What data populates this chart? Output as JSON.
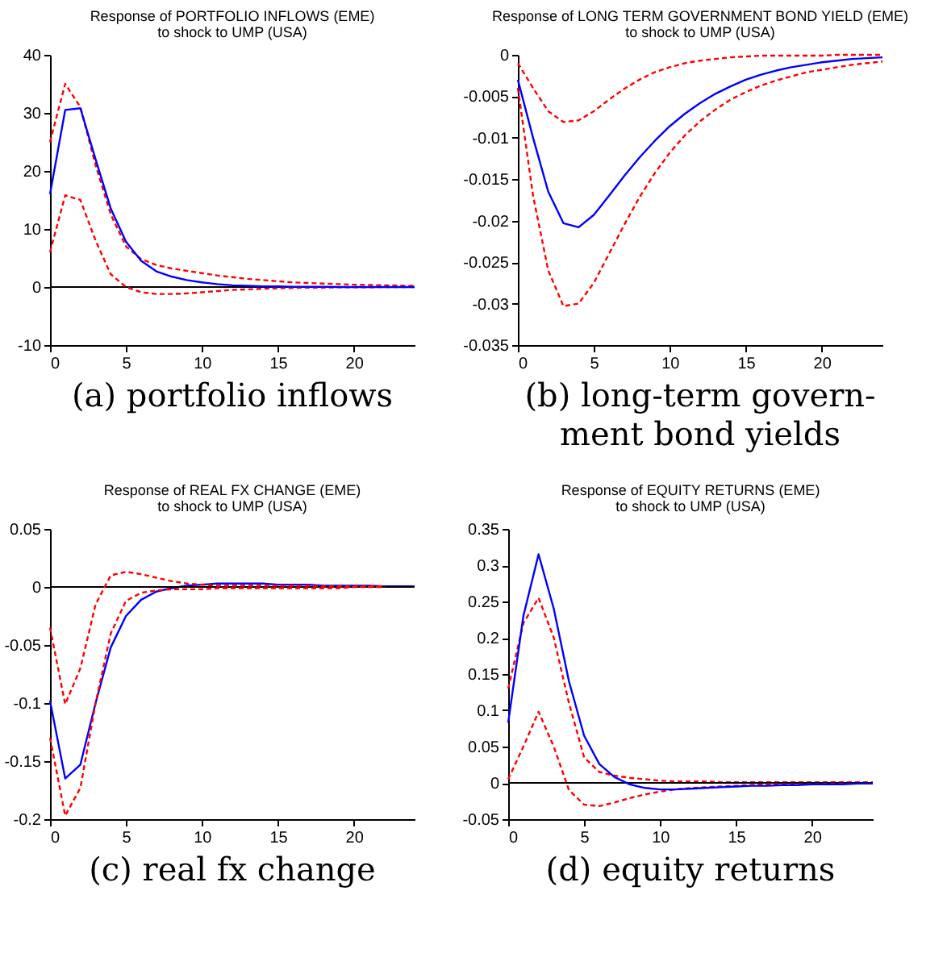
{
  "chart_data": [
    {
      "type": "line",
      "title": "Response of PORTFOLIO INFLOWS (EME)",
      "subtitle": "to shock to UMP (USA)",
      "annotations": [
        "(a) portfolio inflows"
      ],
      "x": [
        0,
        1,
        2,
        3,
        4,
        5,
        6,
        7,
        8,
        9,
        10,
        11,
        12,
        13,
        14,
        15,
        16,
        17,
        18,
        19,
        20,
        21,
        22,
        23,
        24
      ],
      "xlim": [
        0,
        24
      ],
      "xticks": [
        0,
        5,
        10,
        15,
        20
      ],
      "ylim": [
        -10,
        40
      ],
      "yticks": [
        -10,
        0,
        10,
        20,
        30,
        40
      ],
      "grid": false,
      "ref_lines": [
        {
          "axis": "y",
          "value": 0,
          "color": "#000000"
        }
      ],
      "series": [
        {
          "color": "#ff0000",
          "line_style": "dashed",
          "values": [
            25,
            35,
            31,
            21,
            12.5,
            7,
            4.8,
            3.8,
            3.2,
            2.8,
            2.4,
            2.0,
            1.7,
            1.4,
            1.2,
            1.0,
            0.8,
            0.7,
            0.6,
            0.5,
            0.4,
            0.35,
            0.3,
            0.25,
            0.2
          ]
        },
        {
          "color": "#ff0000",
          "line_style": "dashed",
          "values": [
            6,
            15.8,
            15,
            8,
            2.2,
            0,
            -0.9,
            -1.2,
            -1.2,
            -1.1,
            -0.9,
            -0.7,
            -0.5,
            -0.4,
            -0.3,
            -0.2,
            -0.15,
            -0.1,
            -0.1,
            -0.05,
            -0.05,
            -0.05,
            0,
            0,
            0
          ]
        },
        {
          "color": "#0000ff",
          "line_style": "solid",
          "values": [
            16,
            30.5,
            30.8,
            22,
            13.5,
            7.8,
            4.5,
            2.7,
            1.8,
            1.2,
            0.8,
            0.5,
            0.3,
            0.2,
            0.1,
            0.1,
            0.05,
            0.05,
            0.05,
            0,
            0,
            0,
            0,
            0,
            0
          ]
        }
      ]
    },
    {
      "type": "line",
      "title": "Response of LONG TERM GOVERNMENT BOND YIELD (EME)",
      "subtitle": "to shock to UMP (USA)",
      "annotations": [
        "(b) long-term govern-\nment bond yields"
      ],
      "x": [
        0,
        1,
        2,
        3,
        4,
        5,
        6,
        7,
        8,
        9,
        10,
        11,
        12,
        13,
        14,
        15,
        16,
        17,
        18,
        19,
        20,
        21,
        22,
        23,
        24
      ],
      "xlim": [
        0,
        24
      ],
      "xticks": [
        0,
        5,
        10,
        15,
        20
      ],
      "ylim": [
        -0.035,
        0
      ],
      "yticks": [
        -0.035,
        -0.03,
        -0.025,
        -0.02,
        -0.015,
        -0.01,
        -0.005,
        0
      ],
      "grid": false,
      "series": [
        {
          "color": "#ff0000",
          "line_style": "dashed",
          "values": [
            -0.001,
            -0.004,
            -0.0068,
            -0.0081,
            -0.0079,
            -0.0068,
            -0.0054,
            -0.0041,
            -0.003,
            -0.0021,
            -0.0015,
            -0.001,
            -0.0007,
            -0.0005,
            -0.0003,
            -0.0002,
            -0.0001,
            -0.0001,
            -0.0001,
            -0.0001,
            -0.0001,
            0,
            0,
            0,
            0
          ]
        },
        {
          "color": "#ff0000",
          "line_style": "dashed",
          "values": [
            -0.004,
            -0.017,
            -0.026,
            -0.0303,
            -0.03,
            -0.0275,
            -0.024,
            -0.0205,
            -0.0172,
            -0.0143,
            -0.0118,
            -0.0097,
            -0.008,
            -0.0066,
            -0.0054,
            -0.0045,
            -0.0037,
            -0.0031,
            -0.0026,
            -0.0021,
            -0.0018,
            -0.0015,
            -0.0012,
            -0.001,
            -0.0008
          ]
        },
        {
          "color": "#0000ff",
          "line_style": "solid",
          "values": [
            -0.003,
            -0.01,
            -0.0165,
            -0.0203,
            -0.0208,
            -0.0193,
            -0.017,
            -0.0146,
            -0.0124,
            -0.0104,
            -0.0086,
            -0.0071,
            -0.0058,
            -0.0047,
            -0.0038,
            -0.003,
            -0.0024,
            -0.0019,
            -0.0015,
            -0.0012,
            -0.0009,
            -0.0007,
            -0.0005,
            -0.0004,
            -0.0003
          ]
        }
      ]
    },
    {
      "type": "line",
      "title": "Response of REAL FX CHANGE (EME)",
      "subtitle": "to shock to UMP (USA)",
      "annotations": [
        "(c) real fx change"
      ],
      "x": [
        0,
        1,
        2,
        3,
        4,
        5,
        6,
        7,
        8,
        9,
        10,
        11,
        12,
        13,
        14,
        15,
        16,
        17,
        18,
        19,
        20,
        21,
        22,
        23,
        24
      ],
      "xlim": [
        0,
        24
      ],
      "xticks": [
        0,
        5,
        10,
        15,
        20
      ],
      "ylim": [
        -0.2,
        0.05
      ],
      "yticks": [
        -0.2,
        -0.15,
        -0.1,
        -0.05,
        0,
        0.05
      ],
      "grid": false,
      "ref_lines": [
        {
          "axis": "y",
          "value": 0,
          "color": "#000000"
        }
      ],
      "series": [
        {
          "color": "#0000ff",
          "line_style": "solid",
          "values": [
            -0.098,
            -0.165,
            -0.153,
            -0.1,
            -0.052,
            -0.025,
            -0.011,
            -0.004,
            -0.001,
            0.001,
            0.002,
            0.003,
            0.003,
            0.003,
            0.003,
            0.002,
            0.002,
            0.002,
            0.001,
            0.001,
            0.001,
            0.001,
            0.0005,
            0.0005,
            0.0005
          ]
        },
        {
          "color": "#ff0000",
          "line_style": "dashed",
          "values": [
            -0.035,
            -0.101,
            -0.07,
            -0.015,
            0.01,
            0.013,
            0.011,
            0.008,
            0.005,
            0.003,
            0.002,
            0.001,
            0.001,
            0.001,
            0.001,
            0.001,
            0.001,
            0.001,
            0.0005,
            0.0005,
            0.0005,
            0.0005,
            0.0005,
            null,
            null
          ]
        },
        {
          "color": "#ff0000",
          "line_style": "dashed",
          "values": [
            -0.13,
            -0.197,
            -0.173,
            -0.1,
            -0.04,
            -0.012,
            -0.005,
            -0.003,
            -0.002,
            -0.002,
            -0.002,
            -0.001,
            -0.001,
            -0.001,
            -0.001,
            -0.001,
            -0.001,
            -0.001,
            -0.001,
            -0.001,
            0,
            0,
            0,
            null,
            null
          ]
        }
      ]
    },
    {
      "type": "line",
      "title": "Response of EQUITY RETURNS (EME)",
      "subtitle": "to shock to UMP (USA)",
      "annotations": [
        "(d) equity returns"
      ],
      "x": [
        0,
        1,
        2,
        3,
        4,
        5,
        6,
        7,
        8,
        9,
        10,
        11,
        12,
        13,
        14,
        15,
        16,
        17,
        18,
        19,
        20,
        21,
        22,
        23,
        24
      ],
      "xlim": [
        0,
        24
      ],
      "xticks": [
        0,
        5,
        10,
        15,
        20
      ],
      "ylim": [
        -0.05,
        0.35
      ],
      "yticks": [
        -0.05,
        0,
        0.05,
        0.1,
        0.15,
        0.2,
        0.25,
        0.3,
        0.35
      ],
      "grid": false,
      "ref_lines": [
        {
          "axis": "y",
          "value": 0,
          "color": "#000000"
        }
      ],
      "series": [
        {
          "color": "#ff0000",
          "line_style": "dashed",
          "values": [
            0.13,
            0.22,
            0.255,
            0.2,
            0.11,
            0.035,
            0.015,
            0.01,
            0.007,
            0.005,
            0.003,
            0.002,
            0.002,
            0.002,
            0.001,
            0.001,
            0.001,
            0.001,
            0.001,
            0.001,
            0.001,
            0.001,
            0.001,
            0.001,
            0.001
          ]
        },
        {
          "color": "#ff0000",
          "line_style": "dashed",
          "values": [
            0.005,
            0.05,
            0.098,
            0.05,
            -0.01,
            -0.03,
            -0.032,
            -0.027,
            -0.021,
            -0.016,
            -0.012,
            -0.009,
            -0.007,
            -0.006,
            -0.005,
            -0.004,
            -0.003,
            -0.002,
            -0.002,
            -0.002,
            -0.002,
            -0.001,
            -0.001,
            -0.001,
            -0.001
          ]
        },
        {
          "color": "#0000ff",
          "line_style": "solid",
          "values": [
            0.083,
            0.23,
            0.315,
            0.24,
            0.14,
            0.065,
            0.026,
            0.008,
            -0.002,
            -0.007,
            -0.009,
            -0.009,
            -0.008,
            -0.007,
            -0.006,
            -0.005,
            -0.004,
            -0.004,
            -0.003,
            -0.003,
            -0.002,
            -0.002,
            -0.002,
            -0.001,
            -0.001
          ]
        }
      ]
    }
  ]
}
